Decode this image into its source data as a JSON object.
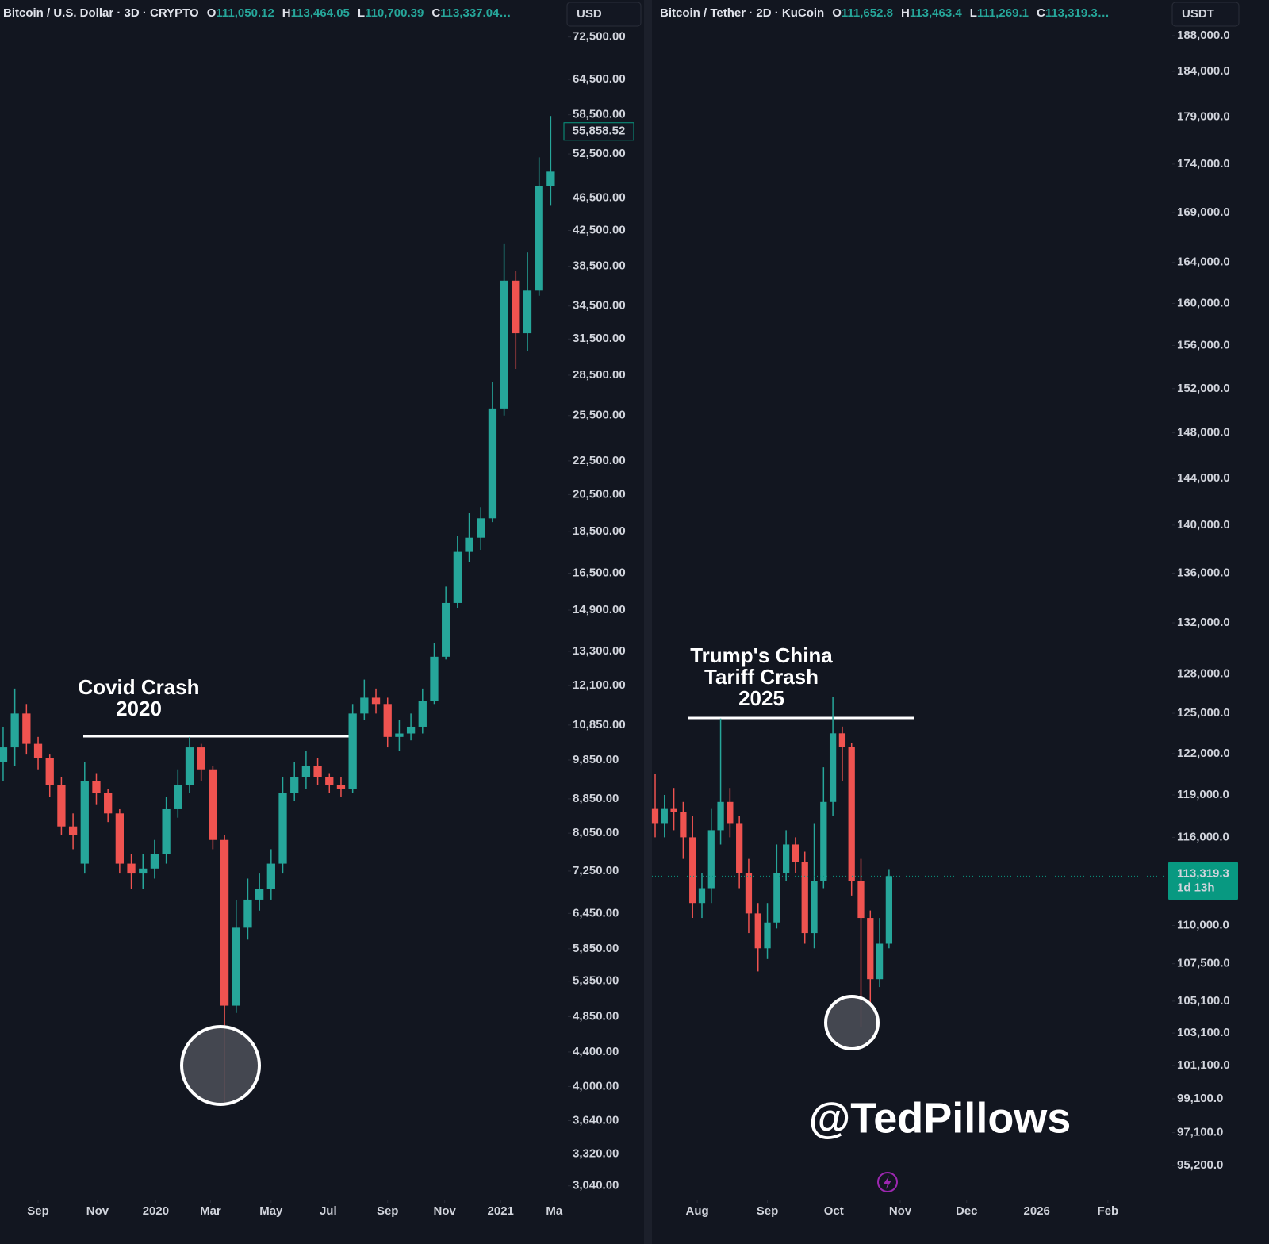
{
  "chart_data": [
    {
      "type": "candlestick",
      "title": "Bitcoin / U.S. Dollar · 3D · CRYPTO",
      "ohlc_header": [
        {
          "key": "O",
          "value": "111,050.12"
        },
        {
          "key": "H",
          "value": "113,464.05"
        },
        {
          "key": "L",
          "value": "110,700.39"
        },
        {
          "key": "C",
          "value": "113,337.04…"
        }
      ],
      "currency": "USD",
      "log_scale": true,
      "up_color": "#26a69a",
      "down_color": "#ef5350",
      "candles": {
        "open": [
          9800,
          10200,
          11200,
          10300,
          9900,
          9200,
          8200,
          7400,
          9300,
          9000,
          8500,
          7400,
          7200,
          7300,
          7600,
          8600,
          9200,
          10200,
          9600,
          7900,
          5000,
          6200,
          6700,
          6900,
          7400,
          9000,
          9400,
          9700,
          9400,
          9200,
          9100,
          11200,
          11700,
          11500,
          10500,
          10600,
          10800,
          11600,
          13100,
          15200,
          17500,
          18200,
          19200,
          26000,
          37000,
          32000,
          36000,
          48000
        ],
        "high": [
          10800,
          12000,
          11500,
          10500,
          10000,
          9400,
          8500,
          9800,
          9500,
          9100,
          8600,
          7600,
          7600,
          7900,
          8900,
          9600,
          10500,
          10300,
          9700,
          8000,
          6700,
          7100,
          7200,
          7700,
          9400,
          9800,
          10100,
          9900,
          9500,
          9400,
          11500,
          12300,
          12000,
          11700,
          11000,
          11200,
          12000,
          13600,
          15900,
          18300,
          19500,
          19800,
          28000,
          41000,
          38000,
          40000,
          52000,
          58300
        ],
        "low": [
          9300,
          9700,
          10000,
          9600,
          8900,
          8000,
          7700,
          7200,
          8700,
          8300,
          7200,
          6900,
          6900,
          7100,
          7400,
          8400,
          9000,
          9300,
          7700,
          3800,
          4900,
          6000,
          6500,
          6700,
          7200,
          8800,
          9100,
          9200,
          9000,
          8900,
          9000,
          11000,
          11200,
          10200,
          10100,
          10400,
          10600,
          11500,
          13000,
          15000,
          17000,
          17600,
          19000,
          25500,
          29000,
          30500,
          35500,
          45500
        ],
        "close": [
          10200,
          11200,
          10300,
          9900,
          9200,
          8200,
          8000,
          9300,
          9000,
          8500,
          7400,
          7200,
          7300,
          7600,
          8600,
          9200,
          10200,
          9600,
          7900,
          5000,
          6200,
          6700,
          6900,
          7400,
          9000,
          9400,
          9700,
          9400,
          9200,
          9100,
          11200,
          11700,
          11500,
          10500,
          10600,
          10800,
          11600,
          13100,
          15200,
          17500,
          18200,
          19200,
          26000,
          37000,
          32000,
          36000,
          48000,
          50000
        ]
      },
      "xlim": [
        -0.27,
        48.2
      ],
      "xticks": [
        {
          "value": 3.0,
          "label": "Sep"
        },
        {
          "value": 8.1,
          "label": "Nov"
        },
        {
          "value": 13.1,
          "label": "2020"
        },
        {
          "value": 17.8,
          "label": "Mar"
        },
        {
          "value": 23.0,
          "label": "May"
        },
        {
          "value": 27.9,
          "label": "Jul"
        },
        {
          "value": 33.0,
          "label": "Sep"
        },
        {
          "value": 37.9,
          "label": "Nov"
        },
        {
          "value": 42.7,
          "label": "2021"
        },
        {
          "value": 47.3,
          "label": "Ma"
        }
      ],
      "ylim": [
        2940,
        75200
      ],
      "yticks": [
        {
          "value": 72500,
          "label": "72,500.00"
        },
        {
          "value": 64500,
          "label": "64,500.00"
        },
        {
          "value": 58500,
          "label": "58,500.00"
        },
        {
          "value": 52500,
          "label": "52,500.00"
        },
        {
          "value": 46500,
          "label": "46,500.00"
        },
        {
          "value": 42500,
          "label": "42,500.00"
        },
        {
          "value": 38500,
          "label": "38,500.00"
        },
        {
          "value": 34500,
          "label": "34,500.00"
        },
        {
          "value": 31500,
          "label": "31,500.00"
        },
        {
          "value": 28500,
          "label": "28,500.00"
        },
        {
          "value": 25500,
          "label": "25,500.00"
        },
        {
          "value": 22500,
          "label": "22,500.00"
        },
        {
          "value": 20500,
          "label": "20,500.00"
        },
        {
          "value": 18500,
          "label": "18,500.00"
        },
        {
          "value": 16500,
          "label": "16,500.00"
        },
        {
          "value": 14900,
          "label": "14,900.00"
        },
        {
          "value": 13300,
          "label": "13,300.00"
        },
        {
          "value": 12100,
          "label": "12,100.00"
        },
        {
          "value": 10850,
          "label": "10,850.00"
        },
        {
          "value": 9850,
          "label": "9,850.00"
        },
        {
          "value": 8850,
          "label": "8,850.00"
        },
        {
          "value": 8050,
          "label": "8,050.00"
        },
        {
          "value": 7250,
          "label": "7,250.00"
        },
        {
          "value": 6450,
          "label": "6,450.00"
        },
        {
          "value": 5850,
          "label": "5,850.00"
        },
        {
          "value": 5350,
          "label": "5,350.00"
        },
        {
          "value": 4850,
          "label": "4,850.00"
        },
        {
          "value": 4400,
          "label": "4,400.00"
        },
        {
          "value": 4000,
          "label": "4,000.00"
        },
        {
          "value": 3640,
          "label": "3,640.00"
        },
        {
          "value": 3320,
          "label": "3,320.00"
        },
        {
          "value": 3040,
          "label": "3,040.00"
        }
      ],
      "last_price": {
        "value": 55858.52,
        "label": "55,858.52"
      },
      "annotation": [
        "Covid Crash",
        "2020"
      ]
    },
    {
      "type": "candlestick",
      "title": "Bitcoin / Tether · 2D · KuCoin",
      "ohlc_header": [
        {
          "key": "O",
          "value": "111,652.8"
        },
        {
          "key": "H",
          "value": "113,463.4"
        },
        {
          "key": "L",
          "value": "111,269.1"
        },
        {
          "key": "C",
          "value": "113,319.3…"
        }
      ],
      "currency": "USDT",
      "log_scale": true,
      "up_color": "#26a69a",
      "down_color": "#ef5350",
      "candles": {
        "open": [
          118000,
          117000,
          118000,
          117800,
          116000,
          111500,
          112500,
          116500,
          118500,
          117000,
          113500,
          110800,
          108500,
          110200,
          113500,
          115500,
          114300,
          109500,
          113000,
          118500,
          123500,
          122500,
          113000,
          110500,
          106500,
          108800
        ],
        "high": [
          120500,
          119000,
          119500,
          118500,
          117500,
          113500,
          118000,
          124600,
          119500,
          117500,
          114500,
          111500,
          111500,
          115500,
          116500,
          116000,
          115000,
          117000,
          121000,
          126200,
          124000,
          122800,
          114500,
          111000,
          110500,
          113800
        ],
        "low": [
          116000,
          116000,
          116500,
          114500,
          110500,
          110500,
          111500,
          115500,
          116000,
          112500,
          109500,
          107000,
          107800,
          109800,
          113000,
          113500,
          108800,
          108500,
          112500,
          117500,
          120000,
          112000,
          103500,
          105000,
          106000,
          108500
        ],
        "close": [
          117000,
          118000,
          117800,
          116000,
          111500,
          112500,
          116500,
          118500,
          117000,
          113500,
          110800,
          108500,
          110200,
          113500,
          115500,
          114300,
          109500,
          113000,
          118500,
          123500,
          122500,
          113000,
          110500,
          106500,
          108800,
          113319.3
        ]
      },
      "xlim": [
        -0.34,
        54.6
      ],
      "xticks": [
        {
          "value": 4.5,
          "label": "Aug"
        },
        {
          "value": 12.0,
          "label": "Sep"
        },
        {
          "value": 19.1,
          "label": "Oct"
        },
        {
          "value": 26.2,
          "label": "Nov"
        },
        {
          "value": 33.3,
          "label": "Dec"
        },
        {
          "value": 40.8,
          "label": "2026"
        },
        {
          "value": 48.4,
          "label": "Feb"
        }
      ],
      "ylim": [
        93350,
        189350
      ],
      "yticks": [
        {
          "value": 188000,
          "label": "188,000.0"
        },
        {
          "value": 184000,
          "label": "184,000.0"
        },
        {
          "value": 179000,
          "label": "179,000.0"
        },
        {
          "value": 174000,
          "label": "174,000.0"
        },
        {
          "value": 169000,
          "label": "169,000.0"
        },
        {
          "value": 164000,
          "label": "164,000.0"
        },
        {
          "value": 160000,
          "label": "160,000.0"
        },
        {
          "value": 156000,
          "label": "156,000.0"
        },
        {
          "value": 152000,
          "label": "152,000.0"
        },
        {
          "value": 148000,
          "label": "148,000.0"
        },
        {
          "value": 144000,
          "label": "144,000.0"
        },
        {
          "value": 140000,
          "label": "140,000.0"
        },
        {
          "value": 136000,
          "label": "136,000.0"
        },
        {
          "value": 132000,
          "label": "132,000.0"
        },
        {
          "value": 128000,
          "label": "128,000.0"
        },
        {
          "value": 125000,
          "label": "125,000.0"
        },
        {
          "value": 122000,
          "label": "122,000.0"
        },
        {
          "value": 119000,
          "label": "119,000.0"
        },
        {
          "value": 116000,
          "label": "116,000.0"
        },
        {
          "value": 110000,
          "label": "110,000.0"
        },
        {
          "value": 107500,
          "label": "107,500.0"
        },
        {
          "value": 105100,
          "label": "105,100.0"
        },
        {
          "value": 103100,
          "label": "103,100.0"
        },
        {
          "value": 101100,
          "label": "101,100.0"
        },
        {
          "value": 99100,
          "label": "99,100.0"
        },
        {
          "value": 97100,
          "label": "97,100.0"
        },
        {
          "value": 95200,
          "label": "95,200.0"
        }
      ],
      "last_price": {
        "value": 113319.3,
        "label": "113,319.3",
        "countdown": "1d 13h"
      },
      "annotation": [
        "Trump's China",
        "Tariff Crash",
        "2025"
      ]
    }
  ],
  "watermark": "@TedPillows"
}
